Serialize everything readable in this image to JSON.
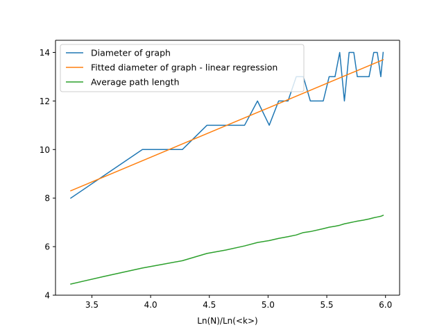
{
  "chart_data": {
    "type": "line",
    "title": "",
    "xlabel": "Ln(N)/Ln(<k>)",
    "ylabel": "",
    "xlim": [
      3.19,
      6.12
    ],
    "ylim": [
      4,
      14.5
    ],
    "xticks": [
      3.5,
      4.0,
      4.5,
      5.0,
      5.5,
      6.0
    ],
    "xtick_labels": [
      "3.5",
      "4.0",
      "4.5",
      "5.0",
      "5.5",
      "6.0"
    ],
    "yticks": [
      4,
      6,
      8,
      10,
      12,
      14
    ],
    "ytick_labels": [
      "4",
      "6",
      "8",
      "10",
      "12",
      "14"
    ],
    "grid": false,
    "legend_position": "top-left",
    "series": [
      {
        "name": "Diameter of graph",
        "color": "#1f77b4",
        "x": [
          3.32,
          3.93,
          4.1,
          4.27,
          4.48,
          4.64,
          4.8,
          4.91,
          5.01,
          5.09,
          5.17,
          5.24,
          5.3,
          5.36,
          5.47,
          5.52,
          5.57,
          5.61,
          5.65,
          5.69,
          5.73,
          5.76,
          5.81,
          5.86,
          5.9,
          5.93,
          5.96,
          5.98
        ],
        "y": [
          8,
          10,
          10,
          10,
          11,
          11,
          11,
          12,
          11,
          12,
          12,
          13,
          13,
          12,
          12,
          13,
          13,
          14,
          12,
          14,
          14,
          13,
          13,
          13,
          14,
          14,
          13,
          14
        ]
      },
      {
        "name": "Fitted diameter of graph - linear regression",
        "color": "#ff7f0e",
        "x": [
          3.32,
          5.98
        ],
        "y": [
          8.3,
          13.7
        ]
      },
      {
        "name": "Average path length",
        "color": "#2ca02c",
        "x": [
          3.32,
          3.6,
          3.93,
          4.1,
          4.27,
          4.48,
          4.64,
          4.8,
          4.91,
          5.01,
          5.09,
          5.17,
          5.24,
          5.3,
          5.36,
          5.47,
          5.52,
          5.57,
          5.61,
          5.65,
          5.69,
          5.73,
          5.76,
          5.81,
          5.86,
          5.9,
          5.93,
          5.96,
          5.98
        ],
        "y": [
          4.46,
          4.77,
          5.12,
          5.27,
          5.42,
          5.72,
          5.86,
          6.03,
          6.17,
          6.25,
          6.34,
          6.41,
          6.48,
          6.58,
          6.62,
          6.74,
          6.8,
          6.84,
          6.88,
          6.94,
          6.98,
          7.02,
          7.05,
          7.09,
          7.14,
          7.19,
          7.22,
          7.25,
          7.29
        ]
      }
    ]
  }
}
